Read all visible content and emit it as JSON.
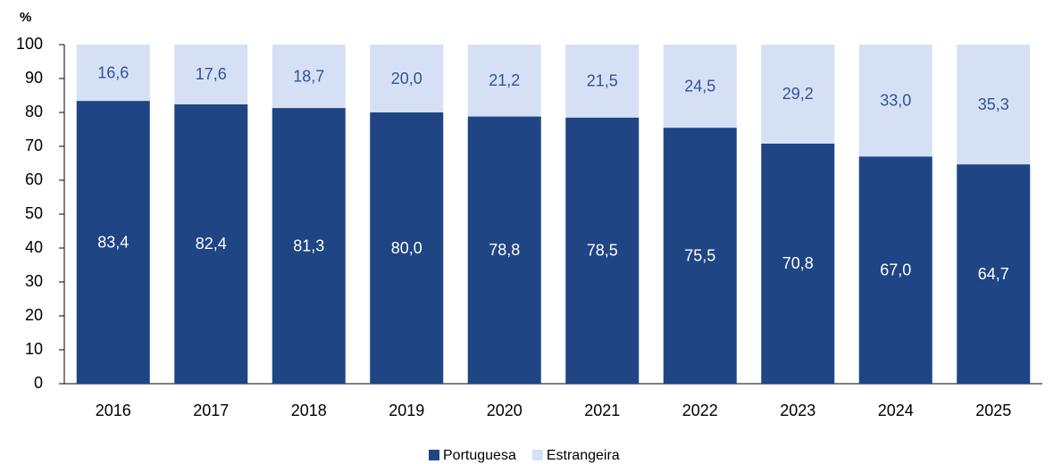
{
  "chart_data": {
    "type": "stacked_bar",
    "y_axis_label": "%",
    "categories": [
      "2016",
      "2017",
      "2018",
      "2019",
      "2020",
      "2021",
      "2022",
      "2023",
      "2024",
      "2025"
    ],
    "series": [
      {
        "name": "Portuguesa",
        "color": "#1f4584",
        "label_color": "#ffffff",
        "values": [
          83.4,
          82.4,
          81.3,
          80.0,
          78.8,
          78.5,
          75.5,
          70.8,
          67.0,
          64.7
        ],
        "value_labels": [
          "83,4",
          "82,4",
          "81,3",
          "80,0",
          "78,8",
          "78,5",
          "75,5",
          "70,8",
          "67,0",
          "64,7"
        ]
      },
      {
        "name": "Estrangeira",
        "color": "#d6e0f5",
        "label_color": "#2e5597",
        "values": [
          16.6,
          17.6,
          18.7,
          20.0,
          21.2,
          21.5,
          24.5,
          29.2,
          33.0,
          35.3
        ],
        "value_labels": [
          "16,6",
          "17,6",
          "18,7",
          "20,0",
          "21,2",
          "21,5",
          "24,5",
          "29,2",
          "33,0",
          "35,3"
        ]
      }
    ],
    "ylim": [
      0,
      100
    ],
    "yticks": [
      0,
      10,
      20,
      30,
      40,
      50,
      60,
      70,
      80,
      90,
      100
    ],
    "grid": false,
    "legend": "bottom"
  }
}
